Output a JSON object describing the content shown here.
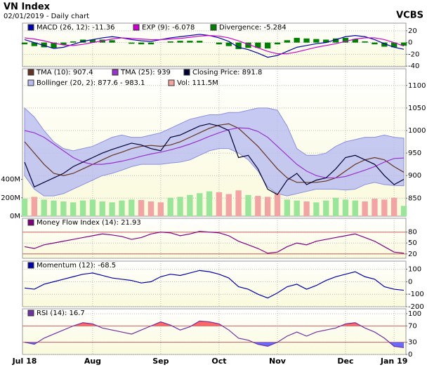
{
  "header": {
    "title": "VN Index",
    "subtitle": "02/01/2019 - Daily chart",
    "source": "VCBS"
  },
  "chart_data": [
    {
      "type": "line",
      "y_axis_side": "right",
      "ylim": [
        -41,
        33
      ],
      "yticks": [
        20,
        0,
        -20,
        -40
      ],
      "grid": true,
      "series": [
        {
          "name": "MACD (26, 12): -11.36",
          "style": "line",
          "color": "#0000aa",
          "values": [
            5,
            0,
            -5,
            -10,
            -8,
            -3,
            2,
            5,
            8,
            10,
            8,
            5,
            3,
            2,
            5,
            8,
            10,
            12,
            14,
            12,
            8,
            2,
            -8,
            -12,
            -18,
            -25,
            -22,
            -15,
            -8,
            -5,
            -2,
            0,
            5,
            10,
            12,
            10,
            5,
            -2,
            -8,
            -11.36
          ]
        },
        {
          "name": "EXP (9): -6.078",
          "style": "line",
          "color": "#cc00cc",
          "values": [
            8,
            6,
            3,
            -1,
            -4,
            -5,
            -3,
            0,
            3,
            6,
            8,
            7,
            6,
            5,
            5,
            6,
            7,
            9,
            11,
            12,
            11,
            8,
            3,
            -3,
            -9,
            -15,
            -19,
            -19,
            -16,
            -12,
            -8,
            -5,
            -2,
            2,
            6,
            8,
            8,
            5,
            0,
            -6.078
          ]
        },
        {
          "name": "Divergence: -5.284",
          "style": "bar",
          "color": "#008000",
          "values": [
            -3,
            -6,
            -8,
            -9,
            -4,
            2,
            5,
            5,
            5,
            4,
            0,
            -2,
            -3,
            -3,
            0,
            2,
            3,
            3,
            3,
            0,
            -3,
            -6,
            -11,
            -9,
            -9,
            -10,
            -3,
            4,
            8,
            7,
            6,
            5,
            7,
            8,
            6,
            2,
            -3,
            -7,
            -8,
            -5.284
          ]
        }
      ]
    },
    {
      "type": "line",
      "y_axis_side": "left",
      "ylim": [
        0,
        1600
      ],
      "yticks": [
        {
          "value": 0,
          "label": "0M"
        },
        {
          "value": 200,
          "label": "200M"
        },
        {
          "value": 400,
          "label": "400M"
        }
      ],
      "y2lim": [
        810,
        1137
      ],
      "y2ticks": [
        850,
        900,
        950,
        1000,
        1050,
        1100
      ],
      "grid": true,
      "series": [
        {
          "name": "TMA (10): 907.4",
          "style": "line",
          "axis": "y2",
          "color": "#663322",
          "values": [
            975,
            950,
            925,
            905,
            900,
            905,
            915,
            925,
            935,
            945,
            952,
            960,
            965,
            967,
            965,
            968,
            975,
            985,
            995,
            1005,
            1012,
            1015,
            1005,
            985,
            965,
            940,
            915,
            895,
            885,
            885,
            885,
            888,
            895,
            910,
            925,
            935,
            940,
            935,
            920,
            907.4
          ]
        },
        {
          "name": "TMA (25): 939",
          "style": "line",
          "axis": "y2",
          "color": "#9933cc",
          "values": [
            1000,
            995,
            985,
            970,
            955,
            940,
            930,
            925,
            925,
            928,
            932,
            937,
            943,
            948,
            952,
            957,
            963,
            970,
            978,
            987,
            995,
            1002,
            1006,
            1005,
            998,
            985,
            965,
            945,
            925,
            910,
            900,
            895,
            895,
            898,
            905,
            912,
            920,
            930,
            938,
            939
          ]
        },
        {
          "name": "Closing Price: 891.8",
          "style": "line",
          "axis": "y2",
          "color": "#000033",
          "values": [
            930,
            875,
            885,
            895,
            905,
            920,
            930,
            940,
            950,
            958,
            965,
            972,
            968,
            960,
            955,
            985,
            990,
            1000,
            1010,
            1015,
            1010,
            1000,
            940,
            945,
            915,
            870,
            858,
            890,
            905,
            880,
            890,
            895,
            915,
            940,
            945,
            935,
            925,
            900,
            880,
            891.8
          ]
        },
        {
          "name": "Bollinger (20, 2): 877.6 - 983.1",
          "style": "band",
          "axis": "y2",
          "color": "#b8bcf0",
          "stroke": "#8c90dc",
          "upper": [
            1050,
            1030,
            1000,
            975,
            960,
            955,
            960,
            965,
            975,
            985,
            990,
            985,
            985,
            990,
            995,
            1005,
            1015,
            1025,
            1030,
            1035,
            1035,
            1040,
            1040,
            1045,
            1050,
            1050,
            1045,
            1010,
            960,
            945,
            945,
            950,
            965,
            975,
            980,
            985,
            985,
            990,
            985,
            983.1
          ],
          "lower": [
            900,
            870,
            855,
            855,
            860,
            870,
            880,
            890,
            900,
            905,
            912,
            920,
            925,
            925,
            925,
            928,
            930,
            935,
            945,
            955,
            960,
            960,
            950,
            935,
            910,
            875,
            860,
            855,
            860,
            865,
            870,
            870,
            870,
            868,
            870,
            880,
            885,
            880,
            878,
            877.6
          ]
        },
        {
          "name": "Vol: 111.5M",
          "style": "bar",
          "axis": "y",
          "color": "#f2a3a3",
          "values": [
            190,
            210,
            180,
            170,
            160,
            150,
            170,
            180,
            160,
            150,
            170,
            180,
            175,
            160,
            150,
            200,
            210,
            230,
            250,
            270,
            260,
            240,
            280,
            230,
            220,
            210,
            250,
            180,
            170,
            160,
            150,
            170,
            200,
            180,
            170,
            160,
            190,
            180,
            200,
            111.5
          ],
          "colors": [
            "#9be59b",
            "#f2a3a3",
            "#9be59b",
            "#9be59b",
            "#9be59b",
            "#9be59b",
            "#9be59b",
            "#9be59b",
            "#9be59b",
            "#9be59b",
            "#9be59b",
            "#9be59b",
            "#f2a3a3",
            "#f2a3a3",
            "#f2a3a3",
            "#9be59b",
            "#9be59b",
            "#9be59b",
            "#9be59b",
            "#9be59b",
            "#f2a3a3",
            "#f2a3a3",
            "#f2a3a3",
            "#9be59b",
            "#f2a3a3",
            "#f2a3a3",
            "#f2a3a3",
            "#9be59b",
            "#9be59b",
            "#f2a3a3",
            "#9be59b",
            "#9be59b",
            "#9be59b",
            "#9be59b",
            "#9be59b",
            "#f2a3a3",
            "#f2a3a3",
            "#f2a3a3",
            "#f2a3a3",
            "#9be59b"
          ]
        }
      ]
    },
    {
      "type": "line",
      "y_axis_side": "right",
      "ylim": [
        8,
        118
      ],
      "yticks": [
        80,
        50,
        20
      ],
      "levels": [
        80,
        20
      ],
      "level_color": "#d06060",
      "grid": true,
      "series": [
        {
          "name": "Money Flow Index (14): 21.93",
          "style": "line",
          "color": "#800080",
          "values": [
            40,
            35,
            45,
            50,
            55,
            60,
            65,
            70,
            75,
            72,
            68,
            60,
            65,
            75,
            80,
            78,
            70,
            75,
            82,
            80,
            78,
            70,
            55,
            45,
            35,
            22,
            25,
            40,
            50,
            45,
            55,
            60,
            65,
            70,
            75,
            65,
            55,
            40,
            25,
            21.93
          ]
        }
      ]
    },
    {
      "type": "line",
      "y_axis_side": "right",
      "ylim": [
        -200,
        165
      ],
      "yticks": [
        100,
        0,
        -100,
        -200
      ],
      "grid": true,
      "series": [
        {
          "name": "Momentum (12): -68.5",
          "style": "line",
          "color": "#0000aa",
          "values": [
            -50,
            -60,
            -20,
            0,
            20,
            40,
            60,
            70,
            50,
            30,
            20,
            10,
            -10,
            0,
            40,
            60,
            50,
            70,
            90,
            80,
            60,
            30,
            -40,
            -60,
            -100,
            -130,
            -90,
            -40,
            -20,
            -60,
            -30,
            10,
            40,
            60,
            80,
            40,
            20,
            -40,
            -60,
            -68.5
          ]
        }
      ]
    },
    {
      "type": "line",
      "y_axis_side": "right",
      "ylim": [
        0,
        112
      ],
      "yticks": [
        100,
        70,
        30,
        0
      ],
      "levels": [
        70,
        30
      ],
      "level_color": "#d06060",
      "level_fill": [
        "#ff6666",
        "#6a6aff"
      ],
      "grid": true,
      "categories": [
        "Jul 18",
        null,
        null,
        null,
        null,
        null,
        null,
        "Aug",
        null,
        null,
        null,
        null,
        null,
        null,
        "Sep",
        null,
        null,
        null,
        null,
        null,
        "Oct",
        null,
        null,
        null,
        null,
        null,
        "Nov",
        null,
        null,
        null,
        null,
        null,
        null,
        "Dec",
        null,
        null,
        null,
        null,
        "Jan 19",
        null
      ],
      "series": [
        {
          "name": "RSI (14): 16.7",
          "style": "line",
          "color": "#7030a0",
          "values": [
            30,
            25,
            40,
            50,
            60,
            70,
            78,
            75,
            65,
            60,
            55,
            50,
            60,
            70,
            80,
            72,
            60,
            68,
            82,
            80,
            75,
            60,
            40,
            35,
            25,
            20,
            30,
            45,
            55,
            45,
            55,
            60,
            65,
            75,
            78,
            65,
            55,
            40,
            20,
            16.7
          ]
        }
      ]
    }
  ]
}
